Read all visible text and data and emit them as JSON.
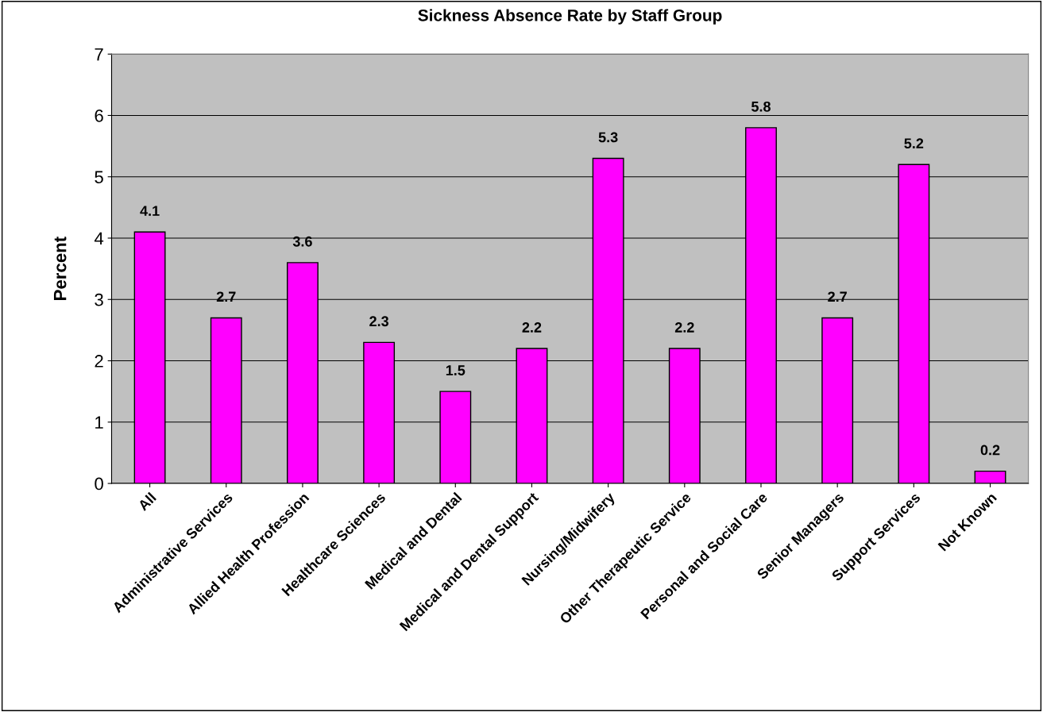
{
  "chart_data": {
    "type": "bar",
    "title": "Sickness Absence Rate by Staff Group",
    "ylabel": "Percent",
    "categories": [
      "All",
      "Administrative Services",
      "Allied Health Profession",
      "Healthcare Sciences",
      "Medical and Dental",
      "Medical and Dental Support",
      "Nursing/Midwifery",
      "Other Therapeutic Service",
      "Personal and Social Care",
      "Senior Managers",
      "Support Services",
      "Not Known"
    ],
    "values": [
      4.1,
      2.7,
      3.6,
      2.3,
      1.5,
      2.2,
      5.3,
      2.2,
      5.8,
      2.7,
      5.2,
      0.2
    ],
    "color": "#ff00ff",
    "ylim": [
      0,
      7
    ],
    "yticks": [
      0,
      1,
      2,
      3,
      4,
      5,
      6,
      7
    ],
    "grid": "y",
    "data_labels": true,
    "legend": false
  }
}
